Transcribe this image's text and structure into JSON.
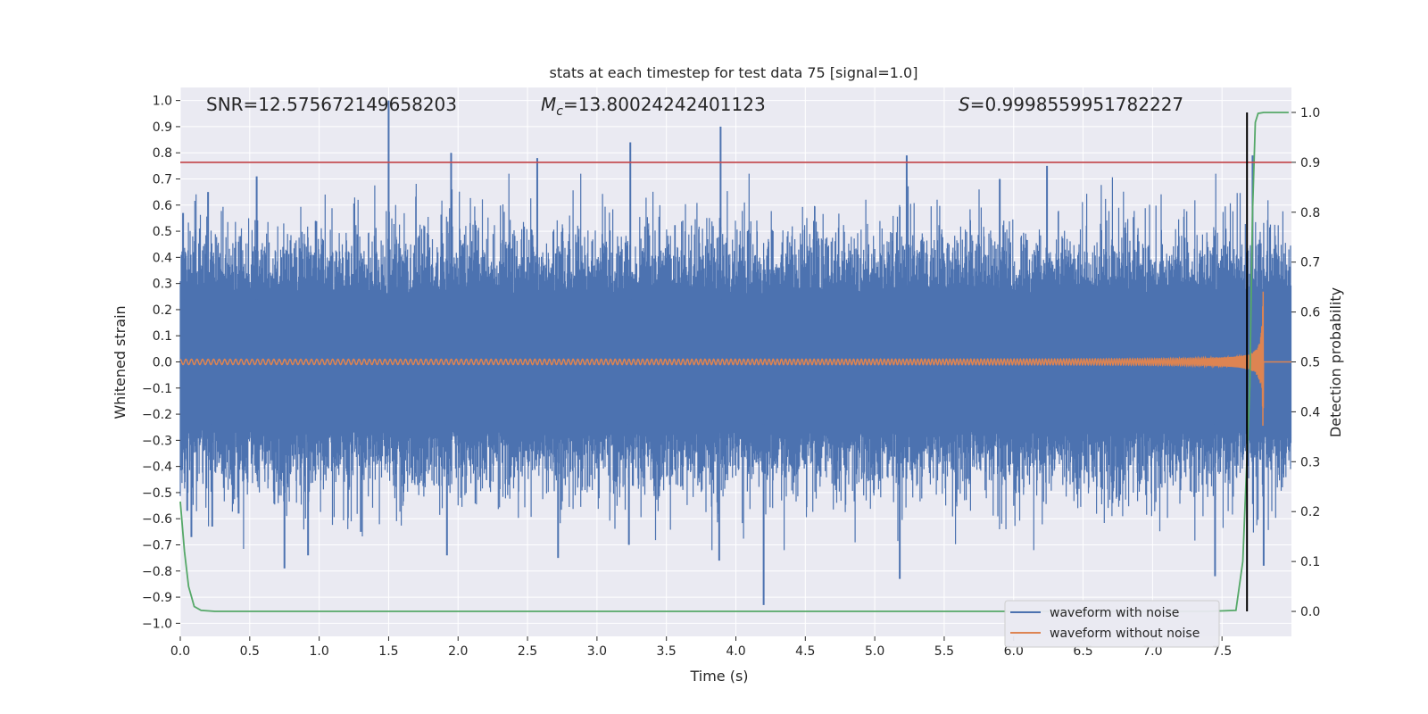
{
  "chart_data": {
    "type": "line",
    "title": "stats at each timestep for test data 75 [signal=1.0]",
    "xlabel": "Time (s)",
    "ylabel": "Whitened strain",
    "y2label": "Detection probability",
    "xlim": [
      0.0,
      8.0
    ],
    "ylim": [
      -1.05,
      1.05
    ],
    "y2lim": [
      -0.05,
      1.05
    ],
    "x_ticks": [
      0.0,
      0.5,
      1.0,
      1.5,
      2.0,
      2.5,
      3.0,
      3.5,
      4.0,
      4.5,
      5.0,
      5.5,
      6.0,
      6.5,
      7.0,
      7.5
    ],
    "x_tick_labels": [
      "0.0",
      "0.5",
      "1.0",
      "1.5",
      "2.0",
      "2.5",
      "3.0",
      "3.5",
      "4.0",
      "4.5",
      "5.0",
      "5.5",
      "6.0",
      "6.5",
      "7.0",
      "7.5"
    ],
    "y_ticks": [
      1.0,
      0.9,
      0.8,
      0.7,
      0.6,
      0.5,
      0.4,
      0.3,
      0.2,
      0.1,
      0.0,
      -0.1,
      -0.2,
      -0.3,
      -0.4,
      -0.5,
      -0.6,
      -0.7,
      -0.8,
      -0.9,
      -1.0
    ],
    "y_tick_labels": [
      "1.0",
      "0.9",
      "0.8",
      "0.7",
      "0.6",
      "0.5",
      "0.4",
      "0.3",
      "0.2",
      "0.1",
      "0.0",
      "−0.1",
      "−0.2",
      "−0.3",
      "−0.4",
      "−0.5",
      "−0.6",
      "−0.7",
      "−0.8",
      "−0.9",
      "−1.0"
    ],
    "y2_ticks": [
      1.0,
      0.9,
      0.8,
      0.7,
      0.6,
      0.5,
      0.4,
      0.3,
      0.2,
      0.1,
      0.0
    ],
    "y2_tick_labels": [
      "1.0",
      "0.9",
      "0.8",
      "0.7",
      "0.6",
      "0.5",
      "0.4",
      "0.3",
      "0.2",
      "0.1",
      "0.0"
    ],
    "grid": true,
    "legend_position": "lower-right",
    "annotations": {
      "snr": "SNR=12.575672149658203",
      "mc_symbol": "M",
      "mc_sub": "c",
      "mc_value": "=13.80024242401123",
      "s_symbol": "S",
      "s_value": "=0.9998559951782227"
    },
    "threshold_line": {
      "axis": "right",
      "value": 0.9,
      "color": "#c44e52"
    },
    "detection_marker": {
      "x": 7.68,
      "y2_range": [
        0.0,
        1.0
      ],
      "color": "#000000"
    },
    "series": [
      {
        "name": "waveform with noise",
        "color": "#4c72b0",
        "axis": "left",
        "description_noise_band": [
          -0.3,
          0.3
        ],
        "peak_spikes": [
          [
            0.02,
            0.57
          ],
          [
            0.05,
            -0.57
          ],
          [
            0.08,
            -0.67
          ],
          [
            0.2,
            0.65
          ],
          [
            0.23,
            -0.63
          ],
          [
            0.42,
            -0.58
          ],
          [
            0.55,
            0.71
          ],
          [
            0.75,
            -0.79
          ],
          [
            0.92,
            -0.74
          ],
          [
            1.3,
            -0.65
          ],
          [
            1.5,
            1.0
          ],
          [
            1.76,
            -0.07
          ],
          [
            1.95,
            0.8
          ],
          [
            1.92,
            -0.74
          ],
          [
            2.57,
            0.78
          ],
          [
            2.72,
            -0.75
          ],
          [
            3.24,
            0.84
          ],
          [
            3.23,
            -0.7
          ],
          [
            3.89,
            0.9
          ],
          [
            3.88,
            -0.76
          ],
          [
            4.2,
            -0.93
          ],
          [
            5.23,
            0.79
          ],
          [
            5.18,
            -0.83
          ],
          [
            5.9,
            0.7
          ],
          [
            6.24,
            0.75
          ],
          [
            7.45,
            -0.82
          ],
          [
            7.72,
            0.79
          ],
          [
            7.8,
            -0.78
          ]
        ]
      },
      {
        "name": "waveform without noise",
        "color": "#dd8452",
        "axis": "left",
        "chirp_start": 0.0,
        "chirp_end": 7.8,
        "amplitude_start": 0.01,
        "amplitude_end": 0.52,
        "after_merger": 0.0
      },
      {
        "name": "",
        "color": "#55a868",
        "axis": "right",
        "x": [
          0.0,
          0.03,
          0.06,
          0.1,
          0.15,
          0.25,
          0.5,
          1.0,
          2.0,
          3.0,
          4.0,
          5.0,
          6.0,
          7.0,
          7.4,
          7.6,
          7.65,
          7.7,
          7.72,
          7.74,
          7.76,
          7.8,
          7.9,
          7.98
        ],
        "values": [
          0.22,
          0.12,
          0.05,
          0.01,
          0.002,
          0.0,
          0.0,
          0.0,
          0.0,
          0.0,
          0.0,
          0.0,
          0.0,
          0.0,
          0.0,
          0.002,
          0.1,
          0.45,
          0.8,
          0.98,
          0.998,
          1.0,
          1.0,
          1.0
        ]
      }
    ]
  }
}
